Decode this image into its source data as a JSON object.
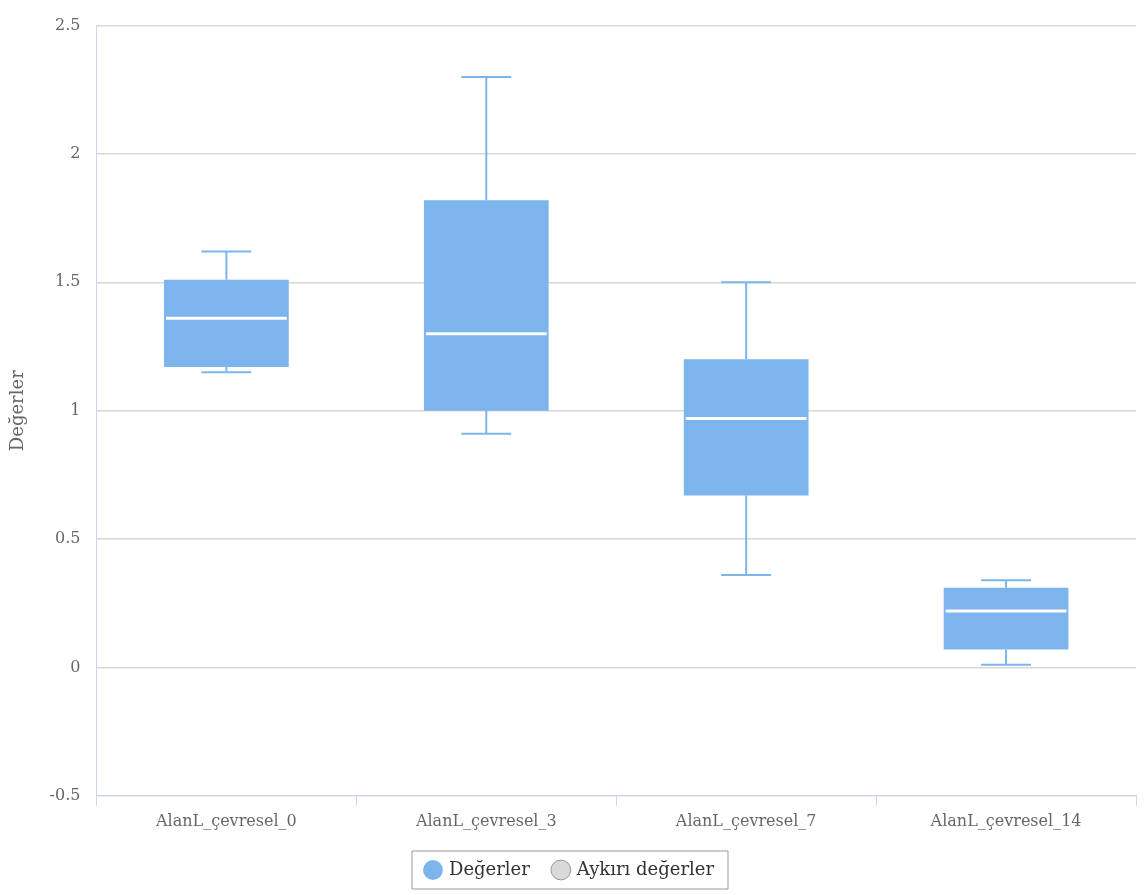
{
  "chart_data": {
    "type": "box",
    "ylabel": "Değerler",
    "categories": [
      "AlanL_çevresel_0",
      "AlanL_çevresel_3",
      "AlanL_çevresel_7",
      "AlanL_çevresel_14"
    ],
    "series": [
      {
        "name": "Değerler",
        "color": "#7cb5ec",
        "boxes": [
          {
            "low": 1.15,
            "q1": 1.17,
            "median": 1.36,
            "q3": 1.51,
            "high": 1.62
          },
          {
            "low": 0.91,
            "q1": 1.0,
            "median": 1.3,
            "q3": 1.82,
            "high": 2.3
          },
          {
            "low": 0.36,
            "q1": 0.67,
            "median": 0.97,
            "q3": 1.2,
            "high": 1.5
          },
          {
            "low": 0.01,
            "q1": 0.07,
            "median": 0.22,
            "q3": 0.31,
            "high": 0.34
          }
        ]
      },
      {
        "name": "Aykırı değerler",
        "type": "scatter",
        "color": "#d9d9d9",
        "values": [
          null,
          null,
          null,
          null
        ]
      }
    ],
    "ylim": [
      -0.5,
      2.5
    ],
    "yticks": [
      -0.5,
      0,
      0.5,
      1,
      1.5,
      2,
      2.5
    ],
    "grid": "y",
    "legend": "bottom"
  }
}
